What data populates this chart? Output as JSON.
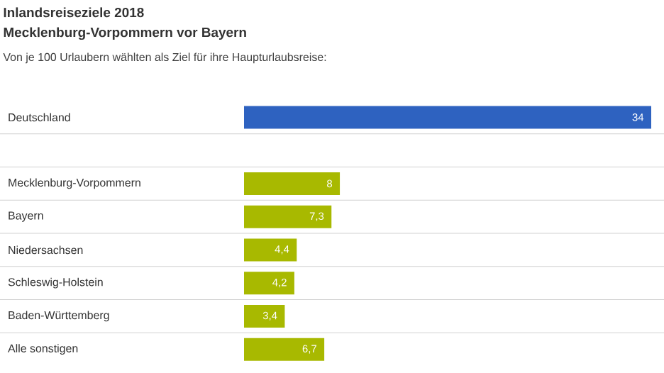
{
  "chart_data": {
    "type": "bar",
    "orientation": "horizontal",
    "title": "Inlandsreiseziele 2018",
    "subtitle": "Mecklenburg-Vorpommern vor Bayern",
    "annotations": [
      "Von je 100 Urlaubern wählten als Ziel für ihre Haupturlaubsreise:"
    ],
    "categories": [
      "Deutschland",
      null,
      "Mecklenburg-Vorpommern",
      "Bayern",
      "Niedersachsen",
      "Schleswig-Holstein",
      "Baden-Württemberg",
      "Alle sonstigen"
    ],
    "values": [
      34,
      null,
      8,
      7.3,
      4.4,
      4.2,
      3.4,
      6.7
    ],
    "value_labels": [
      "34",
      null,
      "8",
      "7,3",
      "4,4",
      "4,2",
      "3,4",
      "6,7"
    ],
    "colors": [
      "#2e62c0",
      null,
      "#a8b900",
      "#a8b900",
      "#a8b900",
      "#a8b900",
      "#a8b900",
      "#a8b900"
    ],
    "grid": "y"
  }
}
